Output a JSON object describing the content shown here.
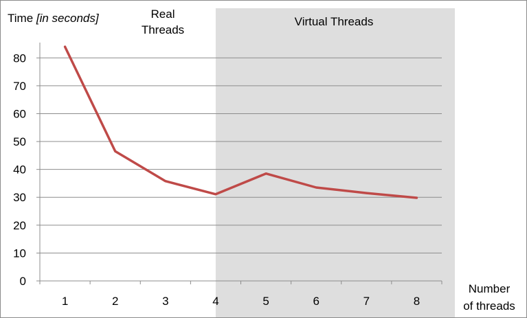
{
  "chart_data": {
    "type": "line",
    "y_title": {
      "prefix": "Time ",
      "italic": "[in seconds]"
    },
    "x_title_lines": [
      "Number",
      "of threads"
    ],
    "categories": [
      "1",
      "2",
      "3",
      "4",
      "5",
      "6",
      "7",
      "8"
    ],
    "series": [
      {
        "values": [
          84,
          46.5,
          35.8,
          31.1,
          38.5,
          33.5,
          31.5,
          29.8
        ],
        "color": "#bf4a48"
      }
    ],
    "ylim": [
      0,
      85
    ],
    "y_ticks": [
      0,
      10,
      20,
      30,
      40,
      50,
      60,
      70,
      80
    ],
    "grid": true,
    "region_labels": {
      "real_lines": [
        "Real",
        "Threads"
      ],
      "virtual": "Virtual Threads"
    },
    "virtual_region": {
      "from_category": "4",
      "color": "#dedede"
    }
  }
}
